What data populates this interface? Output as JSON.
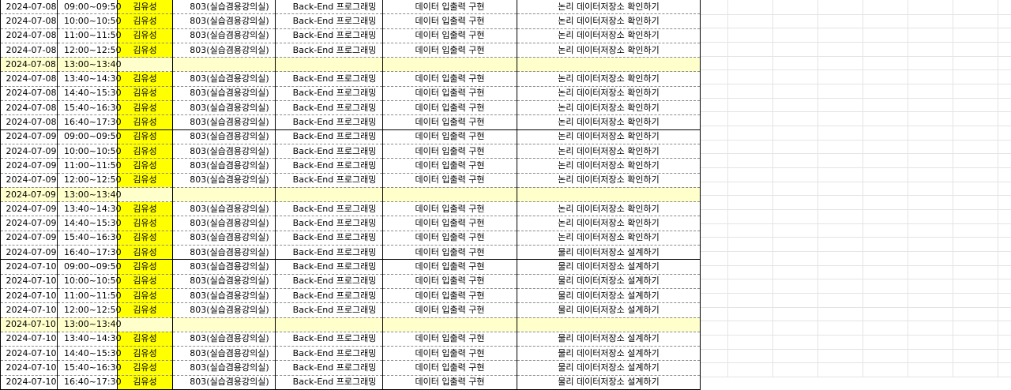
{
  "colors": {
    "name_highlight": "#ffff00",
    "break_row": "#ffffcc",
    "grid": "#e4e4e4"
  },
  "rows": [
    {
      "date": "2024-07-08",
      "time": "09:00~09:50",
      "name": "김유성",
      "room": "803(실습겸용강의실)",
      "subject": "Back-End 프로그래밍",
      "unit": "데이터 입출력 구현",
      "content": "논리 데이터저장소 확인하기",
      "type": "class"
    },
    {
      "date": "2024-07-08",
      "time": "10:00~10:50",
      "name": "김유성",
      "room": "803(실습겸용강의실)",
      "subject": "Back-End 프로그래밍",
      "unit": "데이터 입출력 구현",
      "content": "논리 데이터저장소 확인하기",
      "type": "class"
    },
    {
      "date": "2024-07-08",
      "time": "11:00~11:50",
      "name": "김유성",
      "room": "803(실습겸용강의실)",
      "subject": "Back-End 프로그래밍",
      "unit": "데이터 입출력 구현",
      "content": "논리 데이터저장소 확인하기",
      "type": "class"
    },
    {
      "date": "2024-07-08",
      "time": "12:00~12:50",
      "name": "김유성",
      "room": "803(실습겸용강의실)",
      "subject": "Back-End 프로그래밍",
      "unit": "데이터 입출력 구현",
      "content": "논리 데이터저장소 확인하기",
      "type": "class"
    },
    {
      "date": "2024-07-08",
      "time": "13:00~13:40",
      "name": "",
      "room": "",
      "subject": "",
      "unit": "",
      "content": "",
      "type": "break"
    },
    {
      "date": "2024-07-08",
      "time": "13:40~14:30",
      "name": "김유성",
      "room": "803(실습겸용강의실)",
      "subject": "Back-End 프로그래밍",
      "unit": "데이터 입출력 구현",
      "content": "논리 데이터저장소 확인하기",
      "type": "class"
    },
    {
      "date": "2024-07-08",
      "time": "14:40~15:30",
      "name": "김유성",
      "room": "803(실습겸용강의실)",
      "subject": "Back-End 프로그래밍",
      "unit": "데이터 입출력 구현",
      "content": "논리 데이터저장소 확인하기",
      "type": "class"
    },
    {
      "date": "2024-07-08",
      "time": "15:40~16:30",
      "name": "김유성",
      "room": "803(실습겸용강의실)",
      "subject": "Back-End 프로그래밍",
      "unit": "데이터 입출력 구현",
      "content": "논리 데이터저장소 확인하기",
      "type": "class"
    },
    {
      "date": "2024-07-08",
      "time": "16:40~17:30",
      "name": "김유성",
      "room": "803(실습겸용강의실)",
      "subject": "Back-End 프로그래밍",
      "unit": "데이터 입출력 구현",
      "content": "논리 데이터저장소 확인하기",
      "type": "class",
      "end": true
    },
    {
      "date": "2024-07-09",
      "time": "09:00~09:50",
      "name": "김유성",
      "room": "803(실습겸용강의실)",
      "subject": "Back-End 프로그래밍",
      "unit": "데이터 입출력 구현",
      "content": "논리 데이터저장소 확인하기",
      "type": "class"
    },
    {
      "date": "2024-07-09",
      "time": "10:00~10:50",
      "name": "김유성",
      "room": "803(실습겸용강의실)",
      "subject": "Back-End 프로그래밍",
      "unit": "데이터 입출력 구현",
      "content": "논리 데이터저장소 확인하기",
      "type": "class"
    },
    {
      "date": "2024-07-09",
      "time": "11:00~11:50",
      "name": "김유성",
      "room": "803(실습겸용강의실)",
      "subject": "Back-End 프로그래밍",
      "unit": "데이터 입출력 구현",
      "content": "논리 데이터저장소 확인하기",
      "type": "class"
    },
    {
      "date": "2024-07-09",
      "time": "12:00~12:50",
      "name": "김유성",
      "room": "803(실습겸용강의실)",
      "subject": "Back-End 프로그래밍",
      "unit": "데이터 입출력 구현",
      "content": "논리 데이터저장소 확인하기",
      "type": "class"
    },
    {
      "date": "2024-07-09",
      "time": "13:00~13:40",
      "name": "",
      "room": "",
      "subject": "",
      "unit": "",
      "content": "",
      "type": "break"
    },
    {
      "date": "2024-07-09",
      "time": "13:40~14:30",
      "name": "김유성",
      "room": "803(실습겸용강의실)",
      "subject": "Back-End 프로그래밍",
      "unit": "데이터 입출력 구현",
      "content": "논리 데이터저장소 확인하기",
      "type": "class"
    },
    {
      "date": "2024-07-09",
      "time": "14:40~15:30",
      "name": "김유성",
      "room": "803(실습겸용강의실)",
      "subject": "Back-End 프로그래밍",
      "unit": "데이터 입출력 구현",
      "content": "논리 데이터저장소 확인하기",
      "type": "class"
    },
    {
      "date": "2024-07-09",
      "time": "15:40~16:30",
      "name": "김유성",
      "room": "803(실습겸용강의실)",
      "subject": "Back-End 프로그래밍",
      "unit": "데이터 입출력 구현",
      "content": "논리 데이터저장소 확인하기",
      "type": "class"
    },
    {
      "date": "2024-07-09",
      "time": "16:40~17:30",
      "name": "김유성",
      "room": "803(실습겸용강의실)",
      "subject": "Back-End 프로그래밍",
      "unit": "데이터 입출력 구현",
      "content": "물리 데이터저장소 설계하기",
      "type": "class",
      "end": true
    },
    {
      "date": "2024-07-10",
      "time": "09:00~09:50",
      "name": "김유성",
      "room": "803(실습겸용강의실)",
      "subject": "Back-End 프로그래밍",
      "unit": "데이터 입출력 구현",
      "content": "물리 데이터저장소 설계하기",
      "type": "class"
    },
    {
      "date": "2024-07-10",
      "time": "10:00~10:50",
      "name": "김유성",
      "room": "803(실습겸용강의실)",
      "subject": "Back-End 프로그래밍",
      "unit": "데이터 입출력 구현",
      "content": "물리 데이터저장소 설계하기",
      "type": "class"
    },
    {
      "date": "2024-07-10",
      "time": "11:00~11:50",
      "name": "김유성",
      "room": "803(실습겸용강의실)",
      "subject": "Back-End 프로그래밍",
      "unit": "데이터 입출력 구현",
      "content": "물리 데이터저장소 설계하기",
      "type": "class"
    },
    {
      "date": "2024-07-10",
      "time": "12:00~12:50",
      "name": "김유성",
      "room": "803(실습겸용강의실)",
      "subject": "Back-End 프로그래밍",
      "unit": "데이터 입출력 구현",
      "content": "물리 데이터저장소 설계하기",
      "type": "class"
    },
    {
      "date": "2024-07-10",
      "time": "13:00~13:40",
      "name": "",
      "room": "",
      "subject": "",
      "unit": "",
      "content": "",
      "type": "break"
    },
    {
      "date": "2024-07-10",
      "time": "13:40~14:30",
      "name": "김유성",
      "room": "803(실습겸용강의실)",
      "subject": "Back-End 프로그래밍",
      "unit": "데이터 입출력 구현",
      "content": "물리 데이터저장소 설계하기",
      "type": "class"
    },
    {
      "date": "2024-07-10",
      "time": "14:40~15:30",
      "name": "김유성",
      "room": "803(실습겸용강의실)",
      "subject": "Back-End 프로그래밍",
      "unit": "데이터 입출력 구현",
      "content": "물리 데이터저장소 설계하기",
      "type": "class"
    },
    {
      "date": "2024-07-10",
      "time": "15:40~16:30",
      "name": "김유성",
      "room": "803(실습겸용강의실)",
      "subject": "Back-End 프로그래밍",
      "unit": "데이터 입출력 구현",
      "content": "물리 데이터저장소 설계하기",
      "type": "class"
    },
    {
      "date": "2024-07-10",
      "time": "16:40~17:30",
      "name": "김유성",
      "room": "803(실습겸용강의실)",
      "subject": "Back-End 프로그래밍",
      "unit": "데이터 입출력 구현",
      "content": "물리 데이터저장소 설계하기",
      "type": "class",
      "end": true
    }
  ]
}
